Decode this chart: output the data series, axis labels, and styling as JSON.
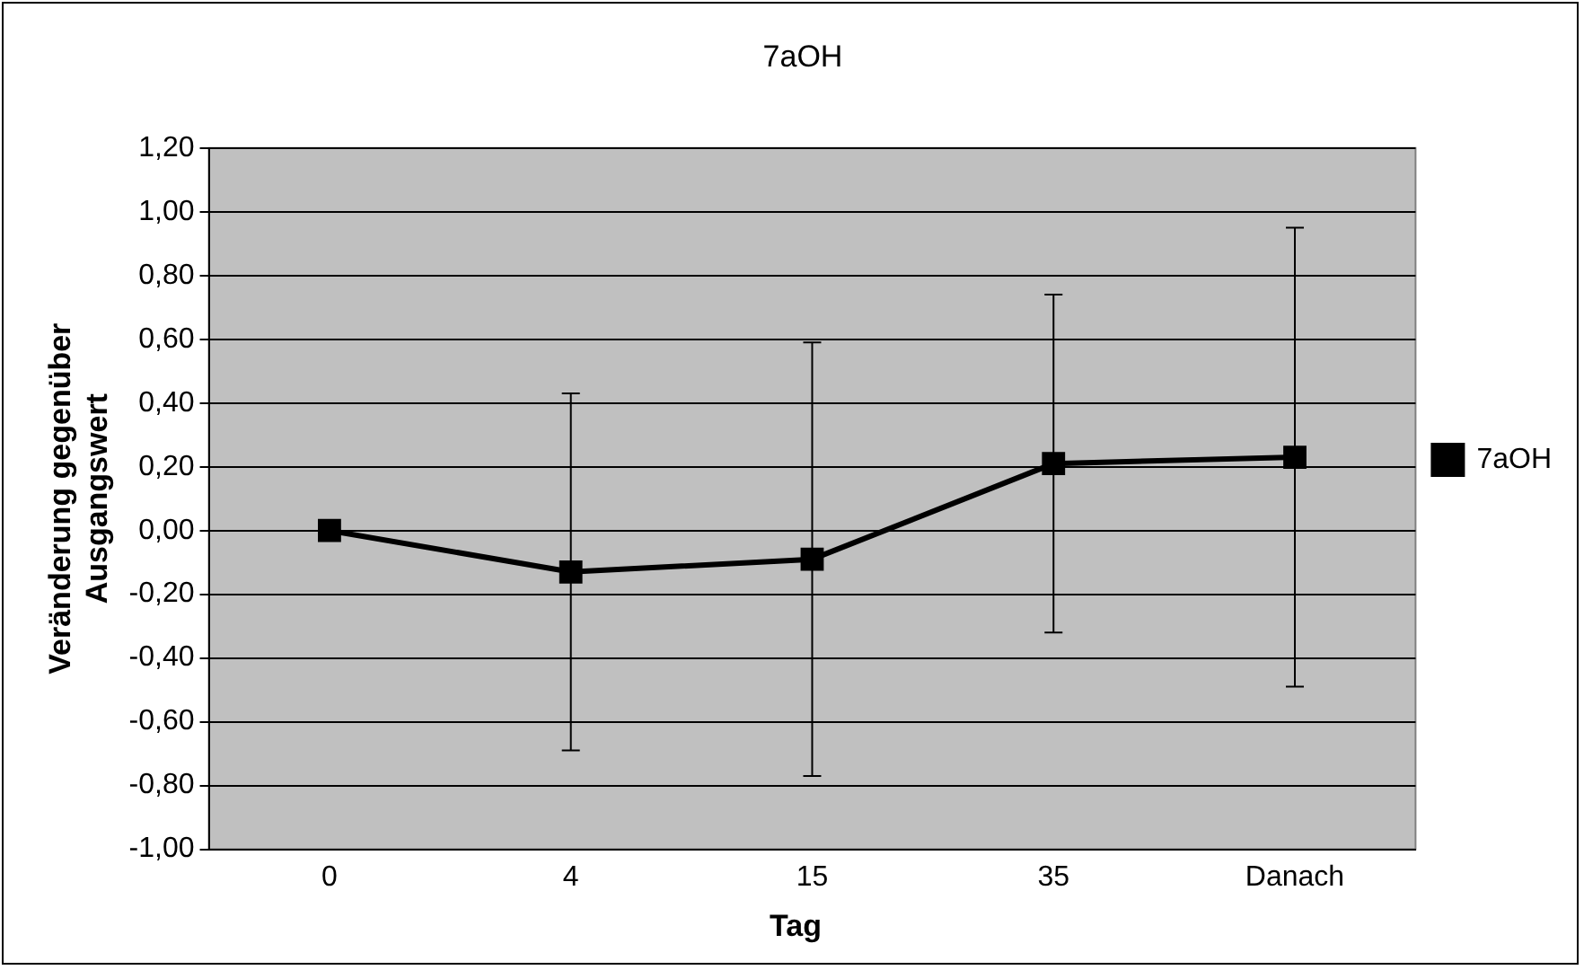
{
  "chart_data": {
    "type": "line",
    "title": "7aOH",
    "xlabel": "Tag",
    "ylabel": "Veränderung gegenüber Ausgangswert",
    "categories": [
      "0",
      "4",
      "15",
      "35",
      "Danach"
    ],
    "series": [
      {
        "name": "7aOH",
        "color": "#000000",
        "values": [
          0,
          -0.13,
          -0.09,
          0.21,
          0.23
        ],
        "errors": [
          null,
          0.56,
          0.68,
          0.53,
          0.72
        ]
      }
    ],
    "ylim": [
      -1,
      1.2
    ],
    "yticks": [
      {
        "value": -1,
        "label": "-1,00"
      },
      {
        "value": -0.8,
        "label": "-0,80"
      },
      {
        "value": -0.6,
        "label": "-0,60"
      },
      {
        "value": -0.4,
        "label": "-0,40"
      },
      {
        "value": -0.2,
        "label": "-0,20"
      },
      {
        "value": 0,
        "label": "0,00"
      },
      {
        "value": 0.2,
        "label": "0,20"
      },
      {
        "value": 0.4,
        "label": "0,40"
      },
      {
        "value": 0.6,
        "label": "0,60"
      },
      {
        "value": 0.8,
        "label": "0,80"
      },
      {
        "value": 1,
        "label": "1,00"
      },
      {
        "value": 1.2,
        "label": "1,20"
      }
    ],
    "grid": "y",
    "legend": "right",
    "marker": "square",
    "line_style": "solid"
  }
}
